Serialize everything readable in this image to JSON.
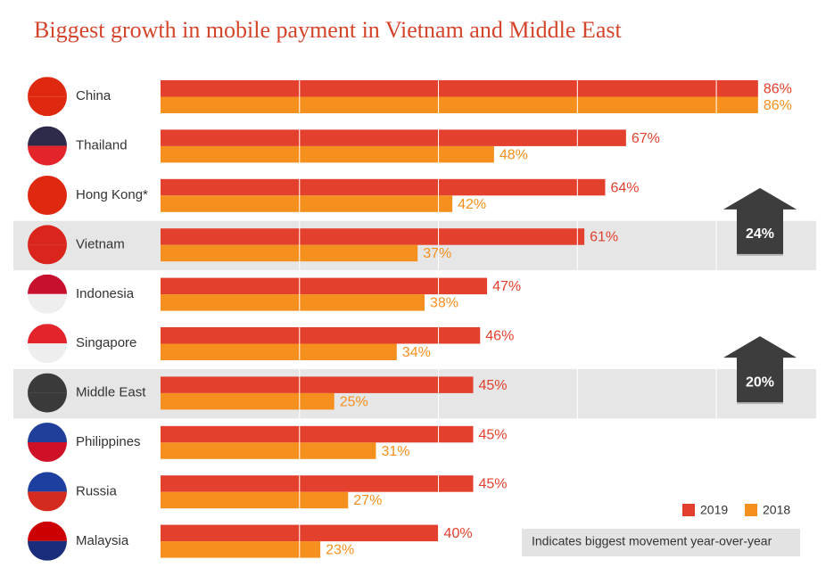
{
  "chart_data": {
    "type": "grouped-hbar",
    "title": "Biggest growth in mobile payment in Vietnam and Middle East",
    "categories": [
      "China",
      "Thailand",
      "Hong Kong*",
      "Vietnam",
      "Indonesia",
      "Singapore",
      "Middle East",
      "Philippines",
      "Russia",
      "Malaysia"
    ],
    "series": [
      {
        "name": "2019",
        "color": "#e3402d",
        "values": [
          86,
          67,
          64,
          61,
          47,
          46,
          45,
          45,
          45,
          40
        ],
        "value_labels": [
          "86%",
          "67%",
          "64%",
          "61%",
          "47%",
          "46%",
          "45%",
          "45%",
          "45%",
          "40%"
        ]
      },
      {
        "name": "2018",
        "color": "#f5901e",
        "values": [
          86,
          48,
          42,
          37,
          38,
          34,
          25,
          31,
          27,
          23
        ],
        "value_labels": [
          "86%",
          "48%",
          "42%",
          "37%",
          "38%",
          "34%",
          "25%",
          "31%",
          "27%",
          "23%"
        ]
      }
    ],
    "xlim": [
      0,
      90
    ],
    "xticks": [
      20,
      40,
      60,
      80
    ],
    "grid": true,
    "highlights": [
      {
        "category": "Vietnam",
        "label": "24%"
      },
      {
        "category": "Middle East",
        "label": "20%"
      }
    ],
    "note": "Indicates biggest movement year-over-year",
    "legend": "bottom-right"
  }
}
